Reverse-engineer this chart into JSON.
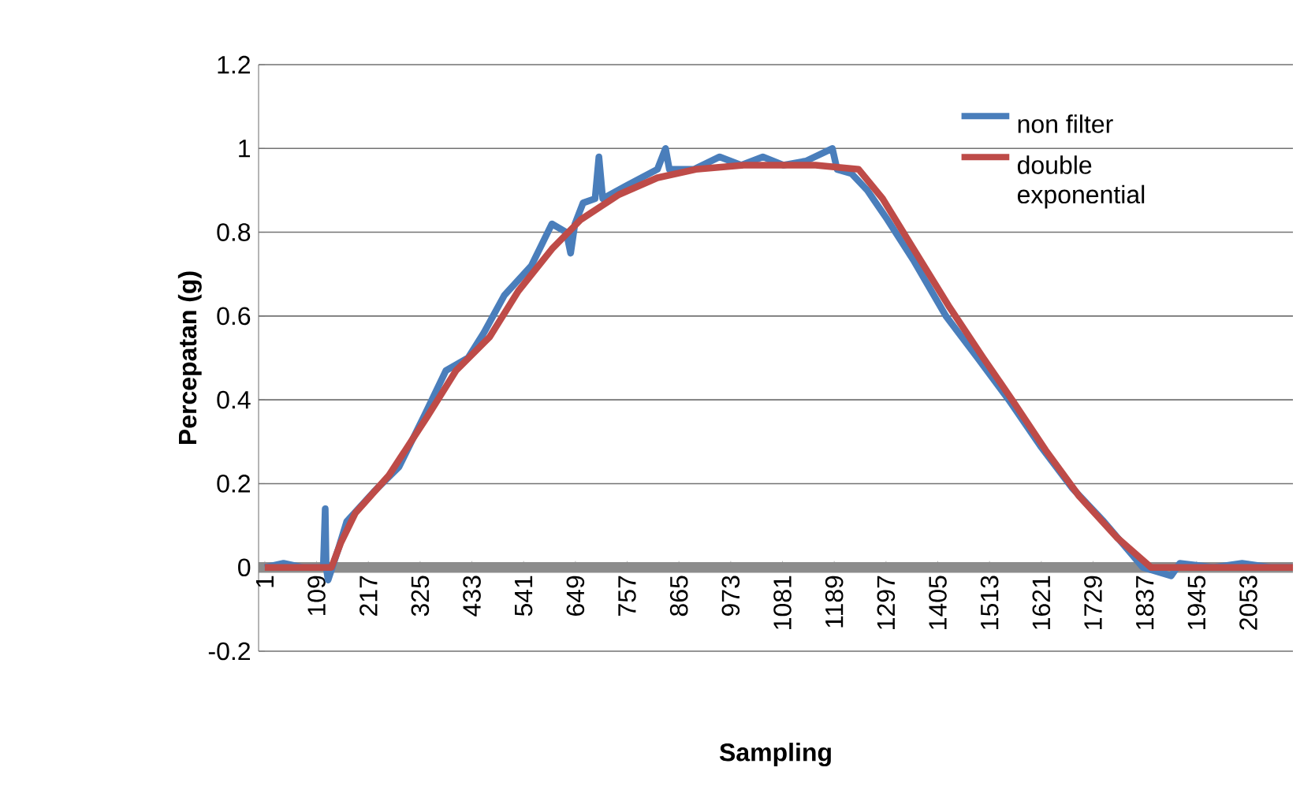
{
  "chart_data": {
    "type": "line",
    "xlabel": "Sampling",
    "ylabel": "Percepatan (g)",
    "xlim": [
      -12,
      2146
    ],
    "ylim": [
      -0.2,
      1.2
    ],
    "xticks": [
      1,
      109,
      217,
      325,
      433,
      541,
      649,
      757,
      865,
      973,
      1081,
      1189,
      1297,
      1405,
      1513,
      1621,
      1729,
      1837,
      1945,
      2053
    ],
    "yticks": [
      -0.2,
      0,
      0.2,
      0.4,
      0.6,
      0.8,
      1,
      1.2
    ],
    "grid": "y",
    "legend": "top right",
    "series": [
      {
        "name": "non filter",
        "color": "#4a7ebb",
        "x": [
          1,
          40,
          80,
          123,
          127,
          129,
          133,
          156,
          172,
          228,
          281,
          337,
          379,
          425,
          458,
          501,
          557,
          600,
          630,
          639,
          648,
          665,
          690,
          698,
          706,
          754,
          820,
          837,
          845,
          896,
          950,
          995,
          1040,
          1083,
          1130,
          1185,
          1195,
          1225,
          1258,
          1300,
          1356,
          1422,
          1488,
          1553,
          1619,
          1685,
          1751,
          1833,
          1892,
          1910,
          1980,
          2040,
          2100,
          2146
        ],
        "values": [
          0,
          0.01,
          0,
          0,
          0.14,
          0,
          -0.03,
          0.05,
          0.11,
          0.18,
          0.24,
          0.37,
          0.47,
          0.5,
          0.56,
          0.65,
          0.72,
          0.82,
          0.8,
          0.75,
          0.82,
          0.87,
          0.88,
          0.98,
          0.88,
          0.91,
          0.95,
          1.0,
          0.95,
          0.95,
          0.98,
          0.96,
          0.98,
          0.96,
          0.97,
          1.0,
          0.95,
          0.94,
          0.9,
          0.83,
          0.73,
          0.6,
          0.5,
          0.4,
          0.29,
          0.19,
          0.11,
          0,
          -0.02,
          0.01,
          0,
          0.01,
          0,
          0
        ]
      },
      {
        "name": "double exponential",
        "color": "#be4b48",
        "x": [
          1,
          140,
          160,
          190,
          260,
          340,
          400,
          470,
          530,
          600,
          660,
          740,
          820,
          900,
          1000,
          1150,
          1240,
          1290,
          1360,
          1430,
          1500,
          1560,
          1630,
          1700,
          1780,
          1850,
          2146
        ],
        "values": [
          0,
          0,
          0.06,
          0.13,
          0.22,
          0.36,
          0.47,
          0.55,
          0.66,
          0.76,
          0.83,
          0.89,
          0.93,
          0.95,
          0.96,
          0.96,
          0.95,
          0.88,
          0.75,
          0.62,
          0.5,
          0.4,
          0.28,
          0.17,
          0.07,
          0,
          0
        ]
      }
    ]
  }
}
